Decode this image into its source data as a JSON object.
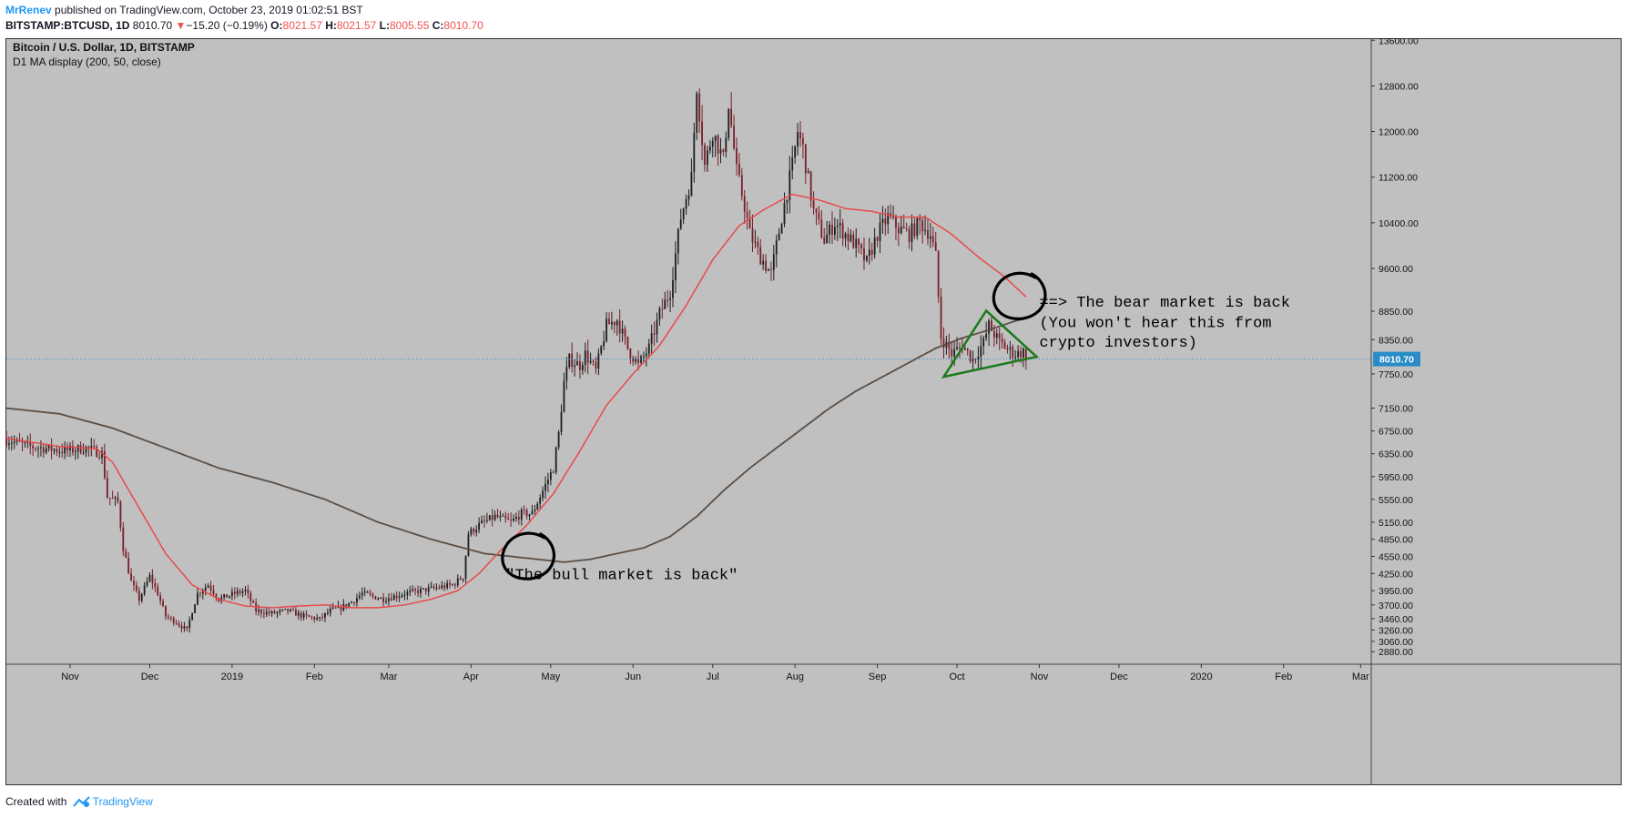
{
  "header": {
    "author": "MrRenev",
    "published": " published on TradingView.com, October 23, 2019 01:02:51 BST",
    "symbol": "BITSTAMP:BTCUSD, 1D",
    "last": "8010.70",
    "change_arrow": "▼",
    "change": "−15.20 (−0.19%)",
    "o_label": "O:",
    "o": "8021.57",
    "h_label": "H:",
    "h": "8021.57",
    "l_label": "L:",
    "l": "8005.55",
    "c_label": "C:",
    "c": "8010.70"
  },
  "footer": {
    "created_with": "Created with",
    "brand": "TradingView"
  },
  "colors": {
    "background": "#c0c0c0",
    "bull_candle": "#1e1e1e",
    "bear_candle": "#7a1d2a",
    "ma50": "#e84a4a",
    "ma200": "#5b4e44",
    "price_line": "#2a8cc6",
    "price_label_bg": "#2a8cc6",
    "triangle": "#1b7a1b",
    "annotation": "#000000"
  },
  "chart_data": {
    "type": "candlestick",
    "title": "Bitcoin / U.S. Dollar, 1D, BITSTAMP",
    "indicator_label": "D1 MA display (200, 50, close)",
    "ylim": [
      2660,
      13620
    ],
    "y_ticks": [
      13600,
      12800,
      12000,
      11200,
      10400,
      9600,
      8850,
      8350,
      7750,
      7150,
      6750,
      6350,
      5950,
      5550,
      5150,
      4850,
      4550,
      4250,
      3950,
      3700,
      3460,
      3260,
      3060,
      2880
    ],
    "y_tick_labels": [
      "13600.00",
      "12800.00",
      "12000.00",
      "11200.00",
      "10400.00",
      "9600.00",
      "8850.00",
      "8350.00",
      "7750.00",
      "7150.00",
      "6750.00",
      "6350.00",
      "5950.00",
      "5550.00",
      "5150.00",
      "4850.00",
      "4550.00",
      "4250.00",
      "3950.00",
      "3700.00",
      "3460.00",
      "3260.00",
      "3060.00",
      "2880.00"
    ],
    "x_range_days": [
      0,
      514
    ],
    "x_ticks": [
      {
        "day": 24,
        "label": "Nov"
      },
      {
        "day": 54,
        "label": "Dec"
      },
      {
        "day": 85,
        "label": "2019"
      },
      {
        "day": 116,
        "label": "Feb"
      },
      {
        "day": 144,
        "label": "Mar"
      },
      {
        "day": 175,
        "label": "Apr"
      },
      {
        "day": 205,
        "label": "May"
      },
      {
        "day": 236,
        "label": "Jun"
      },
      {
        "day": 266,
        "label": "Jul"
      },
      {
        "day": 297,
        "label": "Aug"
      },
      {
        "day": 328,
        "label": "Sep"
      },
      {
        "day": 358,
        "label": "Oct"
      },
      {
        "day": 389,
        "label": "Nov"
      },
      {
        "day": 419,
        "label": "Dec"
      },
      {
        "day": 450,
        "label": "2020"
      },
      {
        "day": 481,
        "label": "Feb"
      },
      {
        "day": 510,
        "label": "Mar"
      }
    ],
    "price_anchors": [
      [
        0,
        6600
      ],
      [
        8,
        6480
      ],
      [
        14,
        6450
      ],
      [
        22,
        6400
      ],
      [
        30,
        6450
      ],
      [
        36,
        6350
      ],
      [
        38,
        5600
      ],
      [
        42,
        5500
      ],
      [
        44,
        4700
      ],
      [
        47,
        4100
      ],
      [
        50,
        3800
      ],
      [
        54,
        4200
      ],
      [
        57,
        3900
      ],
      [
        60,
        3500
      ],
      [
        64,
        3400
      ],
      [
        68,
        3250
      ],
      [
        70,
        3600
      ],
      [
        72,
        3900
      ],
      [
        76,
        4050
      ],
      [
        80,
        3800
      ],
      [
        86,
        3900
      ],
      [
        90,
        3950
      ],
      [
        94,
        3600
      ],
      [
        100,
        3550
      ],
      [
        106,
        3600
      ],
      [
        112,
        3500
      ],
      [
        118,
        3450
      ],
      [
        122,
        3600
      ],
      [
        126,
        3650
      ],
      [
        130,
        3750
      ],
      [
        134,
        3900
      ],
      [
        138,
        3850
      ],
      [
        142,
        3800
      ],
      [
        146,
        3850
      ],
      [
        150,
        3900
      ],
      [
        156,
        3950
      ],
      [
        162,
        4000
      ],
      [
        168,
        4050
      ],
      [
        172,
        4200
      ],
      [
        174,
        4950
      ],
      [
        178,
        5100
      ],
      [
        184,
        5250
      ],
      [
        190,
        5150
      ],
      [
        194,
        5300
      ],
      [
        198,
        5300
      ],
      [
        202,
        5700
      ],
      [
        206,
        6100
      ],
      [
        208,
        6700
      ],
      [
        210,
        7600
      ],
      [
        212,
        8000
      ],
      [
        216,
        7900
      ],
      [
        218,
        8100
      ],
      [
        222,
        7800
      ],
      [
        226,
        8600
      ],
      [
        230,
        8700
      ],
      [
        234,
        8200
      ],
      [
        238,
        7900
      ],
      [
        242,
        8200
      ],
      [
        246,
        8800
      ],
      [
        250,
        9200
      ],
      [
        254,
        10500
      ],
      [
        258,
        11200
      ],
      [
        260,
        12800
      ],
      [
        263,
        11400
      ],
      [
        266,
        12000
      ],
      [
        270,
        11500
      ],
      [
        272,
        12500
      ],
      [
        275,
        11300
      ],
      [
        278,
        10700
      ],
      [
        280,
        10200
      ],
      [
        284,
        9800
      ],
      [
        288,
        9500
      ],
      [
        292,
        10500
      ],
      [
        296,
        11400
      ],
      [
        298,
        12000
      ],
      [
        300,
        11700
      ],
      [
        304,
        10600
      ],
      [
        308,
        10100
      ],
      [
        312,
        10400
      ],
      [
        316,
        10200
      ],
      [
        320,
        10000
      ],
      [
        324,
        9700
      ],
      [
        328,
        10200
      ],
      [
        332,
        10500
      ],
      [
        336,
        10300
      ],
      [
        340,
        10200
      ],
      [
        344,
        10400
      ],
      [
        348,
        10200
      ],
      [
        350,
        9800
      ],
      [
        352,
        8400
      ],
      [
        356,
        8100
      ],
      [
        360,
        8250
      ],
      [
        364,
        8000
      ],
      [
        368,
        8300
      ],
      [
        370,
        8600
      ],
      [
        374,
        8300
      ],
      [
        378,
        8150
      ],
      [
        380,
        8100
      ],
      [
        384,
        8150
      ]
    ],
    "ma50_anchors": [
      [
        0,
        6620
      ],
      [
        20,
        6480
      ],
      [
        34,
        6440
      ],
      [
        40,
        6200
      ],
      [
        50,
        5400
      ],
      [
        60,
        4600
      ],
      [
        70,
        4050
      ],
      [
        80,
        3800
      ],
      [
        90,
        3680
      ],
      [
        100,
        3650
      ],
      [
        110,
        3680
      ],
      [
        120,
        3700
      ],
      [
        130,
        3650
      ],
      [
        140,
        3650
      ],
      [
        150,
        3700
      ],
      [
        160,
        3800
      ],
      [
        170,
        3950
      ],
      [
        178,
        4250
      ],
      [
        186,
        4650
      ],
      [
        196,
        5100
      ],
      [
        206,
        5650
      ],
      [
        216,
        6400
      ],
      [
        226,
        7200
      ],
      [
        236,
        7750
      ],
      [
        246,
        8250
      ],
      [
        256,
        8950
      ],
      [
        266,
        9750
      ],
      [
        276,
        10350
      ],
      [
        286,
        10650
      ],
      [
        296,
        10900
      ],
      [
        306,
        10800
      ],
      [
        316,
        10650
      ],
      [
        326,
        10600
      ],
      [
        336,
        10500
      ],
      [
        346,
        10500
      ],
      [
        356,
        10200
      ],
      [
        366,
        9800
      ],
      [
        376,
        9450
      ],
      [
        384,
        9100
      ]
    ],
    "ma200_anchors": [
      [
        0,
        7150
      ],
      [
        20,
        7050
      ],
      [
        40,
        6800
      ],
      [
        60,
        6450
      ],
      [
        80,
        6100
      ],
      [
        100,
        5850
      ],
      [
        120,
        5550
      ],
      [
        140,
        5150
      ],
      [
        160,
        4850
      ],
      [
        180,
        4600
      ],
      [
        200,
        4500
      ],
      [
        210,
        4450
      ],
      [
        220,
        4500
      ],
      [
        230,
        4600
      ],
      [
        240,
        4700
      ],
      [
        250,
        4900
      ],
      [
        260,
        5250
      ],
      [
        270,
        5700
      ],
      [
        280,
        6100
      ],
      [
        290,
        6450
      ],
      [
        300,
        6800
      ],
      [
        310,
        7150
      ],
      [
        320,
        7450
      ],
      [
        330,
        7700
      ],
      [
        340,
        7950
      ],
      [
        350,
        8200
      ],
      [
        360,
        8380
      ],
      [
        370,
        8520
      ],
      [
        380,
        8680
      ],
      [
        384,
        8720
      ]
    ],
    "current_price": 8010.7,
    "current_price_label": "8010.70",
    "annotations": [
      {
        "text": "\"The bull market is back\"",
        "day": 188,
        "price": 4150
      },
      {
        "text": "==> The bear market is back",
        "day": 389,
        "price": 8930
      },
      {
        "text": "(You won't hear this from",
        "day": 389,
        "price": 8570
      },
      {
        "text": "crypto investors)",
        "day": 389,
        "price": 8230
      }
    ],
    "triangle": {
      "top": {
        "day": 369,
        "price": 8860
      },
      "right": {
        "day": 388,
        "price": 8050
      },
      "bottom": {
        "day": 353,
        "price": 7700
      }
    },
    "circles": [
      {
        "day": 195,
        "price": 4560
      },
      {
        "day": 380,
        "price": 9120
      }
    ]
  }
}
